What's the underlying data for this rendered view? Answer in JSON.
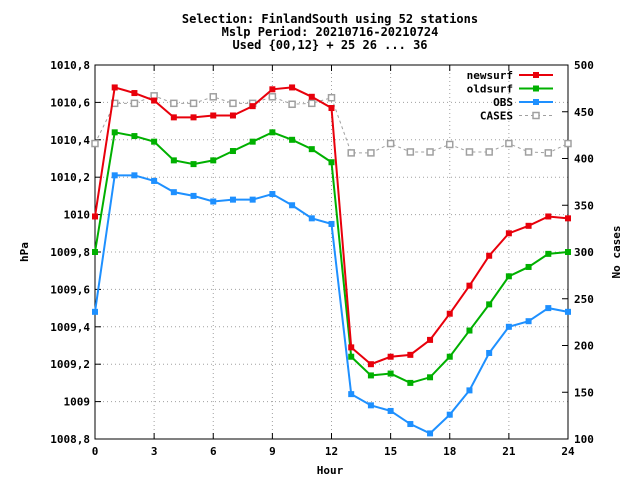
{
  "chart_data": {
    "type": "line",
    "title": {
      "line1": "Selection: FinlandSouth using    52 stations",
      "line2": "Mslp   Period: 20210716-20210724",
      "line3": "Used {00,12} + 25 26 ... 36"
    },
    "xlabel": "Hour",
    "ylabel_left": "hPa",
    "ylabel_right": "No cases",
    "xlim": [
      0,
      24
    ],
    "ylim_left": [
      1008.8,
      1010.8
    ],
    "ylim_right": [
      100,
      500
    ],
    "x_ticks": [
      "0",
      "3",
      "6",
      "9",
      "12",
      "15",
      "18",
      "21",
      "24"
    ],
    "y_ticks_left": [
      "1008,8",
      "1009",
      "1009,2",
      "1009,4",
      "1009,6",
      "1009,8",
      "1010",
      "1010,2",
      "1010,4",
      "1010,6",
      "1010,8"
    ],
    "y_ticks_right": [
      "100",
      "150",
      "200",
      "250",
      "300",
      "350",
      "400",
      "450",
      "500"
    ],
    "grid": true,
    "legend_position": "top-right",
    "x": [
      0,
      1,
      2,
      3,
      4,
      5,
      6,
      7,
      8,
      9,
      10,
      11,
      12,
      13,
      14,
      15,
      16,
      17,
      18,
      19,
      20,
      21,
      22,
      23,
      24
    ],
    "series": [
      {
        "name": "newsurf",
        "axis": "left",
        "color": "#e8000b",
        "marker": "filled-square",
        "values": [
          1009.99,
          1010.68,
          1010.65,
          1010.61,
          1010.52,
          1010.52,
          1010.53,
          1010.53,
          1010.58,
          1010.67,
          1010.68,
          1010.63,
          1010.57,
          1009.29,
          1009.2,
          1009.24,
          1009.25,
          1009.33,
          1009.47,
          1009.62,
          1009.78,
          1009.9,
          1009.94,
          1009.99,
          1009.98
        ]
      },
      {
        "name": "oldsurf",
        "axis": "left",
        "color": "#00b000",
        "marker": "filled-square",
        "values": [
          1009.8,
          1010.44,
          1010.42,
          1010.39,
          1010.29,
          1010.27,
          1010.29,
          1010.34,
          1010.39,
          1010.44,
          1010.4,
          1010.35,
          1010.28,
          1009.24,
          1009.14,
          1009.15,
          1009.1,
          1009.13,
          1009.24,
          1009.38,
          1009.52,
          1009.67,
          1009.72,
          1009.79,
          1009.8
        ]
      },
      {
        "name": "OBS",
        "axis": "left",
        "color": "#1e90ff",
        "marker": "filled-square",
        "values": [
          1009.48,
          1010.21,
          1010.21,
          1010.18,
          1010.12,
          1010.1,
          1010.07,
          1010.08,
          1010.08,
          1010.11,
          1010.05,
          1009.98,
          1009.95,
          1009.04,
          1008.98,
          1008.95,
          1008.88,
          1008.83,
          1008.93,
          1009.06,
          1009.26,
          1009.4,
          1009.43,
          1009.5,
          1009.48
        ]
      },
      {
        "name": "CASES",
        "axis": "right",
        "color": "#a0a0a0",
        "marker": "open-square",
        "dashed": true,
        "values": [
          416,
          459,
          459,
          467,
          459,
          459,
          466,
          459,
          459,
          466,
          458,
          459,
          465,
          406,
          406,
          416,
          407,
          407,
          415,
          407,
          407,
          416,
          407,
          406,
          416
        ]
      }
    ]
  }
}
